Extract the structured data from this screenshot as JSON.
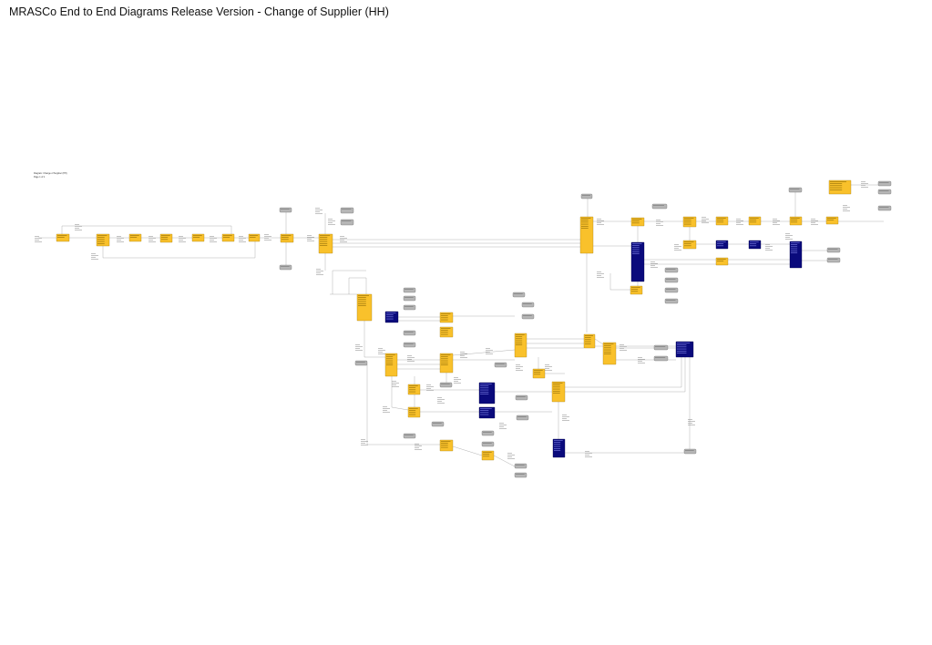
{
  "page": {
    "title": "MRASCo End to End Diagrams Release Version - Change of Supplier (HH)",
    "legend_lines": [
      "Diagram: Change of Supplier (HH)",
      "Page 1 of 1"
    ]
  },
  "colors": {
    "process_box": "#f9c12b",
    "system_box": "#0a0a7c",
    "data_flow_box": "#b6b6b6",
    "connector": "#8f8f8f"
  }
}
